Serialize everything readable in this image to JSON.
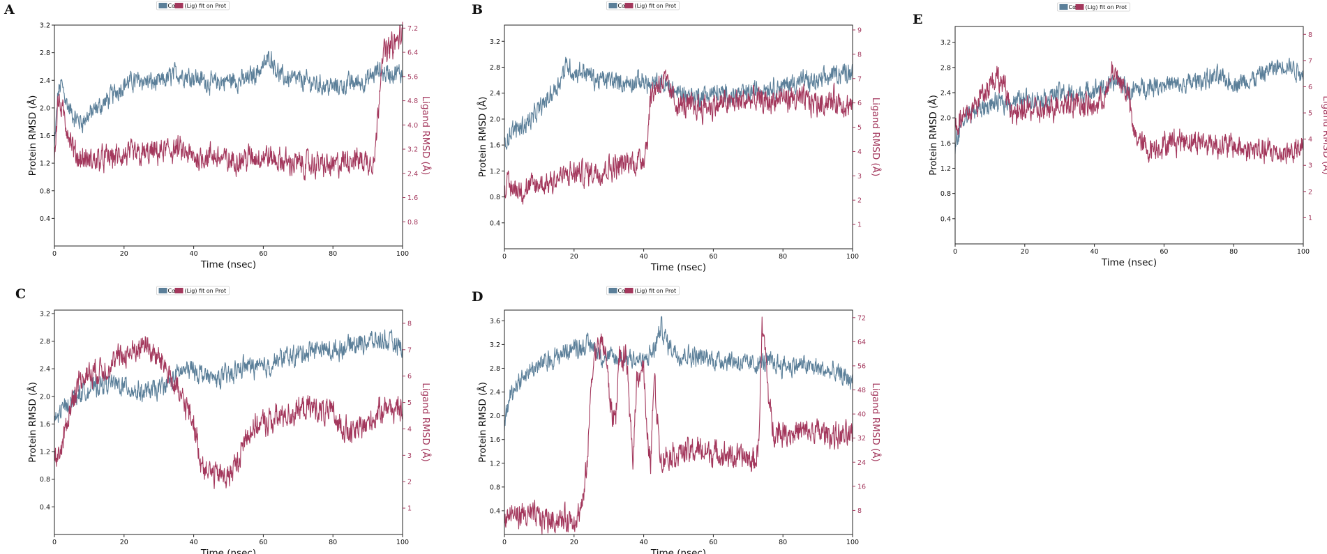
{
  "colors": {
    "protein": "#5b7f99",
    "ligand": "#a3375c",
    "axis": "#222222"
  },
  "chart_data": [
    {
      "type": "line",
      "panel": "A",
      "legend": {
        "protein_label": "Cα",
        "ligand_label": "(Lig) fit on Prot"
      },
      "xlabel": "Time (nsec)",
      "ylabel_left": "Protein RMSD (Å)",
      "ylabel_right": "Ligand RMSD (Å)",
      "xlim": [
        0,
        100
      ],
      "ylim_left": [
        0,
        3.2
      ],
      "ylim_right": [
        0,
        7.3
      ],
      "xticks": [
        "0",
        "20",
        "40",
        "60",
        "80",
        "100"
      ],
      "yticks_left": [
        "0.4",
        "0.8",
        "1.2",
        "1.6",
        "2.0",
        "2.4",
        "2.8",
        "3.2"
      ],
      "yticks_right": [
        "0.8",
        "1.6",
        "2.4",
        "3.2",
        "4.0",
        "4.8",
        "5.6",
        "6.4",
        "7.2"
      ],
      "yticks_left_values": [
        0.4,
        0.8,
        1.2,
        1.6,
        2.0,
        2.4,
        2.8,
        3.2
      ],
      "yticks_right_values": [
        0.8,
        1.6,
        2.4,
        3.2,
        4.0,
        4.8,
        5.6,
        6.4,
        7.2
      ],
      "series": [
        {
          "name": "Cα",
          "axis": "left",
          "x": [
            0,
            1,
            2,
            4,
            6,
            8,
            10,
            15,
            20,
            25,
            30,
            35,
            40,
            45,
            50,
            55,
            60,
            62,
            65,
            70,
            75,
            80,
            85,
            90,
            93,
            95,
            97,
            100
          ],
          "values": [
            1.4,
            2.2,
            2.35,
            2.0,
            1.85,
            1.8,
            1.9,
            2.1,
            2.35,
            2.4,
            2.35,
            2.5,
            2.45,
            2.35,
            2.4,
            2.4,
            2.6,
            2.75,
            2.45,
            2.4,
            2.35,
            2.3,
            2.35,
            2.4,
            2.55,
            2.5,
            2.5,
            2.5
          ]
        },
        {
          "name": "(Lig) fit on Prot",
          "axis": "right",
          "x": [
            0,
            1,
            2,
            4,
            6,
            10,
            15,
            20,
            25,
            30,
            35,
            40,
            45,
            50,
            55,
            60,
            65,
            70,
            75,
            80,
            85,
            90,
            92,
            93,
            94,
            96,
            98,
            100
          ],
          "values": [
            3.0,
            4.8,
            4.5,
            3.8,
            3.0,
            2.8,
            2.9,
            3.0,
            3.0,
            3.1,
            3.2,
            2.9,
            3.0,
            2.8,
            2.9,
            3.0,
            2.8,
            2.7,
            2.7,
            2.6,
            2.9,
            2.8,
            2.9,
            4.5,
            6.3,
            6.5,
            6.7,
            7.0
          ]
        }
      ]
    },
    {
      "type": "line",
      "panel": "B",
      "legend": {
        "protein_label": "Cα",
        "ligand_label": "(Lig) fit on Prot"
      },
      "xlabel": "Time (nsec)",
      "ylabel_left": "Protein RMSD (Å)",
      "ylabel_right": "Ligand RMSD (Å)",
      "xlim": [
        0,
        100
      ],
      "ylim_left": [
        0,
        3.45
      ],
      "ylim_right": [
        0,
        9.2
      ],
      "xticks": [
        "0",
        "20",
        "40",
        "60",
        "80",
        "100"
      ],
      "yticks_left": [
        "0.4",
        "0.8",
        "1.2",
        "1.6",
        "2.0",
        "2.4",
        "2.8",
        "3.2"
      ],
      "yticks_right": [
        "1",
        "2",
        "3",
        "4",
        "5",
        "6",
        "7",
        "8",
        "9"
      ],
      "yticks_left_values": [
        0.4,
        0.8,
        1.2,
        1.6,
        2.0,
        2.4,
        2.8,
        3.2
      ],
      "yticks_right_values": [
        1,
        2,
        3,
        4,
        5,
        6,
        7,
        8,
        9
      ],
      "series": [
        {
          "name": "Cα",
          "axis": "left",
          "x": [
            0,
            2,
            5,
            8,
            10,
            13,
            16,
            18,
            20,
            23,
            26,
            30,
            35,
            40,
            42,
            45,
            50,
            55,
            60,
            65,
            70,
            75,
            80,
            85,
            90,
            95,
            100
          ],
          "values": [
            1.65,
            1.8,
            1.9,
            2.0,
            2.15,
            2.35,
            2.6,
            2.85,
            2.7,
            2.75,
            2.6,
            2.6,
            2.55,
            2.6,
            2.5,
            2.55,
            2.4,
            2.35,
            2.4,
            2.35,
            2.4,
            2.5,
            2.5,
            2.6,
            2.55,
            2.7,
            2.75
          ]
        },
        {
          "name": "(Lig) fit on Prot",
          "axis": "right",
          "x": [
            0,
            3,
            6,
            9,
            12,
            15,
            18,
            20,
            23,
            26,
            29,
            32,
            35,
            38,
            40,
            41,
            42,
            44,
            46,
            48,
            50,
            55,
            60,
            65,
            70,
            75,
            80,
            85,
            90,
            95,
            100
          ],
          "values": [
            2.6,
            2.5,
            2.4,
            2.6,
            2.7,
            2.9,
            3.0,
            3.1,
            3.1,
            3.2,
            3.3,
            3.4,
            3.5,
            3.6,
            3.8,
            4.5,
            6.3,
            6.8,
            6.9,
            6.3,
            5.9,
            5.8,
            5.9,
            6.0,
            6.1,
            6.0,
            6.2,
            6.1,
            6.0,
            6.1,
            5.8
          ]
        }
      ]
    },
    {
      "type": "line",
      "panel": "E",
      "legend": {
        "protein_label": "Cα",
        "ligand_label": "(Lig) fit on Prot"
      },
      "xlabel": "Time (nsec)",
      "ylabel_left": "Protein RMSD (Å)",
      "ylabel_right": "Ligand RMSD (Å)",
      "xlim": [
        0,
        100
      ],
      "ylim_left": [
        0,
        3.45
      ],
      "ylim_right": [
        0,
        8.3
      ],
      "xticks": [
        "0",
        "20",
        "40",
        "60",
        "80",
        "100"
      ],
      "yticks_left": [
        "0.4",
        "0.8",
        "1.2",
        "1.6",
        "2.0",
        "2.4",
        "2.8",
        "3.2"
      ],
      "yticks_right": [
        "1",
        "2",
        "3",
        "4",
        "5",
        "6",
        "7",
        "8"
      ],
      "yticks_left_values": [
        0.4,
        0.8,
        1.2,
        1.6,
        2.0,
        2.4,
        2.8,
        3.2
      ],
      "yticks_right_values": [
        1,
        2,
        3,
        4,
        5,
        6,
        7,
        8
      ],
      "series": [
        {
          "name": "Cα",
          "axis": "left",
          "x": [
            0,
            2,
            5,
            10,
            15,
            20,
            25,
            30,
            35,
            40,
            45,
            47,
            50,
            55,
            60,
            65,
            70,
            75,
            80,
            85,
            90,
            95,
            100
          ],
          "values": [
            1.5,
            1.95,
            2.1,
            2.2,
            2.25,
            2.3,
            2.3,
            2.4,
            2.35,
            2.45,
            2.5,
            2.6,
            2.4,
            2.5,
            2.55,
            2.5,
            2.6,
            2.65,
            2.55,
            2.6,
            2.75,
            2.85,
            2.7
          ]
        },
        {
          "name": "(Lig) fit on Prot",
          "axis": "right",
          "x": [
            0,
            2,
            4,
            6,
            8,
            10,
            12,
            14,
            16,
            18,
            20,
            25,
            30,
            35,
            40,
            44,
            45,
            47,
            49,
            50,
            51,
            55,
            60,
            65,
            70,
            75,
            80,
            85,
            90,
            95,
            100
          ],
          "values": [
            4.5,
            4.8,
            5.0,
            5.3,
            5.8,
            6.2,
            6.4,
            6.0,
            5.2,
            4.8,
            5.2,
            5.0,
            5.4,
            5.4,
            5.2,
            5.8,
            6.6,
            6.3,
            5.9,
            5.6,
            4.3,
            3.6,
            3.8,
            4.0,
            3.9,
            3.8,
            3.7,
            3.6,
            3.5,
            3.5,
            3.6
          ]
        }
      ]
    },
    {
      "type": "line",
      "panel": "C",
      "legend": {
        "protein_label": "Cα",
        "ligand_label": "(Lig) fit on Prot"
      },
      "xlabel": "Time (nsec)",
      "ylabel_left": "Protein RMSD (Å)",
      "ylabel_right": "Ligand RMSD (Å)",
      "xlim": [
        0,
        100
      ],
      "ylim_left": [
        0,
        3.25
      ],
      "ylim_right": [
        0,
        8.5
      ],
      "xticks": [
        "0",
        "20",
        "40",
        "60",
        "80",
        "100"
      ],
      "yticks_left": [
        "0.4",
        "0.8",
        "1.2",
        "1.6",
        "2.0",
        "2.4",
        "2.8",
        "3.2"
      ],
      "yticks_right": [
        "1",
        "2",
        "3",
        "4",
        "5",
        "6",
        "7",
        "8"
      ],
      "yticks_left_values": [
        0.4,
        0.8,
        1.2,
        1.6,
        2.0,
        2.4,
        2.8,
        3.2
      ],
      "yticks_right_values": [
        1,
        2,
        3,
        4,
        5,
        6,
        7,
        8
      ],
      "series": [
        {
          "name": "Cα",
          "axis": "left",
          "x": [
            0,
            3,
            6,
            10,
            15,
            20,
            25,
            30,
            33,
            36,
            40,
            45,
            50,
            55,
            60,
            65,
            70,
            75,
            80,
            85,
            90,
            95,
            100
          ],
          "values": [
            1.65,
            1.85,
            2.0,
            2.1,
            2.2,
            2.15,
            2.05,
            2.1,
            2.2,
            2.35,
            2.4,
            2.25,
            2.3,
            2.45,
            2.4,
            2.55,
            2.6,
            2.7,
            2.65,
            2.75,
            2.8,
            2.8,
            2.7
          ]
        },
        {
          "name": "(Lig) fit on Prot",
          "axis": "right",
          "x": [
            0,
            2,
            4,
            6,
            8,
            12,
            16,
            20,
            24,
            26,
            28,
            32,
            35,
            38,
            40,
            42,
            45,
            50,
            53,
            55,
            58,
            62,
            66,
            70,
            75,
            80,
            85,
            90,
            95,
            100
          ],
          "values": [
            2.8,
            3.2,
            4.5,
            5.5,
            6.0,
            6.2,
            6.4,
            6.8,
            7.0,
            7.3,
            6.9,
            6.4,
            5.5,
            4.8,
            4.2,
            2.8,
            2.3,
            2.2,
            2.8,
            3.8,
            4.1,
            4.3,
            4.5,
            4.7,
            4.8,
            4.5,
            3.8,
            4.2,
            4.9,
            4.6
          ]
        }
      ]
    },
    {
      "type": "line",
      "panel": "D",
      "legend": {
        "protein_label": "Cα",
        "ligand_label": "(Lig) fit on Prot"
      },
      "xlabel": "Time (nsec)",
      "ylabel_left": "Protein RMSD (Å)",
      "ylabel_right": "Ligand RMSD (Å)",
      "xlim": [
        0,
        100
      ],
      "ylim_left": [
        0,
        3.78
      ],
      "ylim_right": [
        0,
        74.5
      ],
      "xticks": [
        "0",
        "20",
        "40",
        "60",
        "80",
        "100"
      ],
      "yticks_left": [
        "0.4",
        "0.8",
        "1.2",
        "1.6",
        "2.0",
        "2.4",
        "2.8",
        "3.2",
        "3.6"
      ],
      "yticks_right": [
        "8",
        "16",
        "24",
        "32",
        "40",
        "48",
        "56",
        "64",
        "72"
      ],
      "yticks_left_values": [
        0.4,
        0.8,
        1.2,
        1.6,
        2.0,
        2.4,
        2.8,
        3.2,
        3.6
      ],
      "yticks_right_values": [
        8,
        16,
        24,
        32,
        40,
        48,
        56,
        64,
        72
      ],
      "series": [
        {
          "name": "Cα",
          "axis": "left",
          "x": [
            0,
            2,
            4,
            7,
            10,
            15,
            20,
            25,
            28,
            32,
            36,
            40,
            43,
            45,
            47,
            50,
            55,
            60,
            65,
            70,
            75,
            80,
            85,
            90,
            95,
            100
          ],
          "values": [
            1.9,
            2.4,
            2.6,
            2.75,
            2.85,
            3.0,
            3.15,
            3.2,
            3.0,
            2.95,
            3.0,
            2.9,
            3.1,
            3.5,
            3.2,
            3.05,
            3.0,
            2.95,
            2.95,
            2.85,
            2.9,
            2.85,
            2.85,
            2.8,
            2.7,
            2.6
          ]
        },
        {
          "name": "(Lig) fit on Prot",
          "axis": "right",
          "x": [
            0,
            5,
            10,
            15,
            20,
            22,
            23,
            24,
            25,
            26,
            27,
            28,
            29,
            30,
            31,
            32,
            33,
            34,
            35,
            36,
            37,
            38,
            39,
            40,
            41,
            42,
            43,
            44,
            45,
            46,
            50,
            55,
            60,
            65,
            70,
            72,
            73,
            74,
            75,
            76,
            77,
            80,
            85,
            90,
            95,
            100
          ],
          "values": [
            6,
            6.5,
            5.5,
            5,
            5,
            8,
            14,
            28,
            52,
            60,
            62,
            64,
            61,
            48,
            39,
            40,
            60,
            56,
            60,
            38,
            26,
            52,
            55,
            56,
            30,
            25,
            52,
            38,
            24,
            26,
            27,
            28,
            27,
            26,
            25,
            24,
            30,
            68,
            60,
            44,
            35,
            34,
            34,
            34,
            33,
            32
          ]
        }
      ]
    }
  ]
}
